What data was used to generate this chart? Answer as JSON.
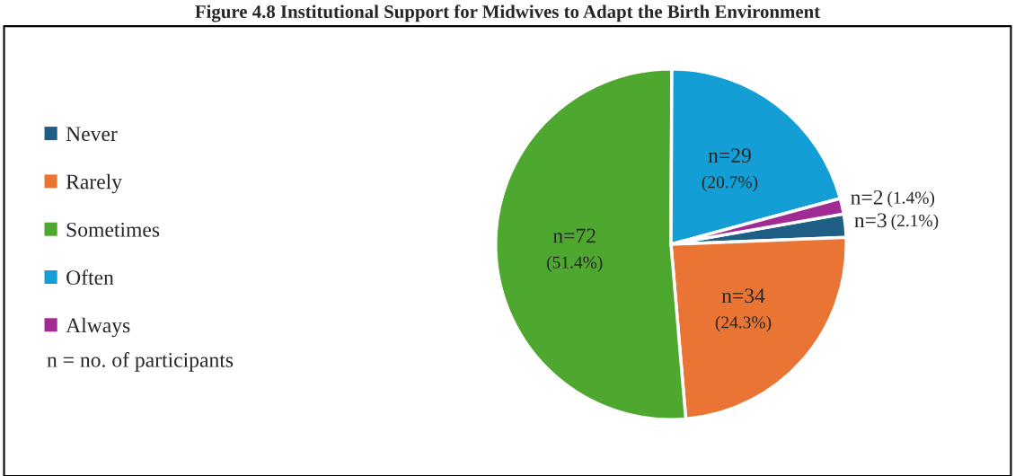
{
  "chart_data": {
    "type": "pie",
    "title": "Figure 4.8 Institutional Support for Midwives to Adapt the Birth Environment",
    "categories": [
      "Never",
      "Rarely",
      "Sometimes",
      "Often",
      "Always"
    ],
    "values": [
      3,
      34,
      72,
      29,
      2
    ],
    "colors": [
      "#1f5f86",
      "#ea7434",
      "#4ea72e",
      "#139fd6",
      "#a02b93"
    ],
    "value_labels": [
      "n=3 (2.1%)",
      "n=34 (24.3%)",
      "n=72 (51.4%)",
      "n=29 (20.7%)",
      "n=2 (1.4%)"
    ],
    "legend": "left",
    "annotations": [
      "n = no. of participants"
    ]
  }
}
